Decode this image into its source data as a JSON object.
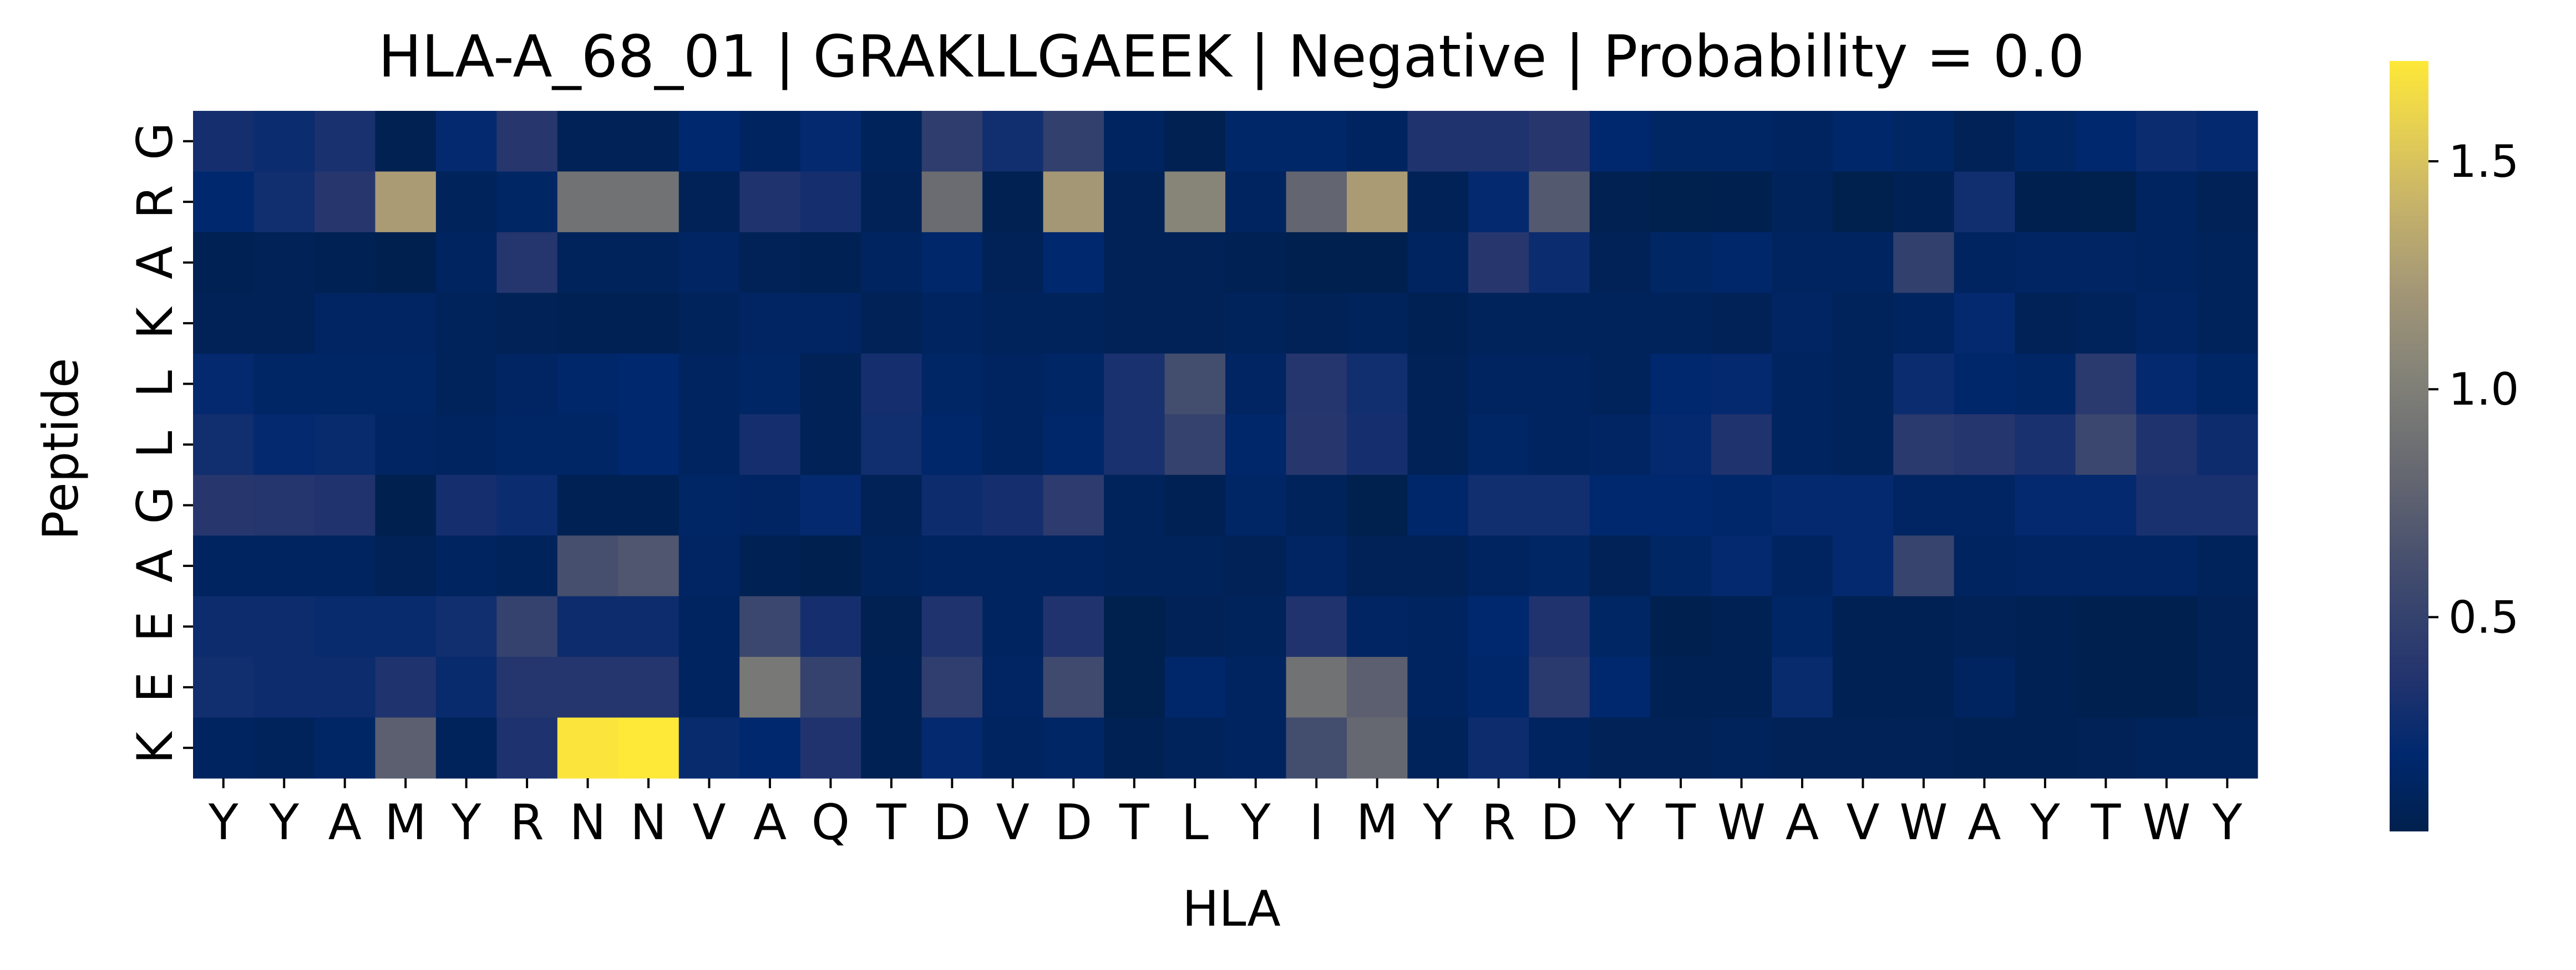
{
  "chart_data": {
    "type": "heatmap",
    "title": "HLA-A_68_01 | GRAKLLGAEEK | Negative | Probability = 0.0",
    "xlabel": "HLA",
    "ylabel": "Peptide",
    "x_ticks": [
      "Y",
      "Y",
      "A",
      "M",
      "Y",
      "R",
      "N",
      "N",
      "V",
      "A",
      "Q",
      "T",
      "D",
      "V",
      "D",
      "T",
      "L",
      "Y",
      "I",
      "M",
      "Y",
      "R",
      "D",
      "Y",
      "T",
      "W",
      "A",
      "V",
      "W",
      "A",
      "Y",
      "T",
      "W",
      "Y"
    ],
    "y_ticks": [
      "G",
      "R",
      "A",
      "K",
      "L",
      "L",
      "G",
      "A",
      "E",
      "E",
      "K"
    ],
    "colormap": "cividis",
    "vmin": 0.03,
    "vmax": 1.72,
    "colorbar_ticks": [
      {
        "value": 0.5,
        "label": "0.5"
      },
      {
        "value": 1.0,
        "label": "1.0"
      },
      {
        "value": 1.5,
        "label": "1.5"
      }
    ],
    "values": [
      [
        0.3,
        0.25,
        0.32,
        0.05,
        0.22,
        0.4,
        0.08,
        0.08,
        0.2,
        0.12,
        0.22,
        0.1,
        0.45,
        0.28,
        0.48,
        0.12,
        0.05,
        0.17,
        0.17,
        0.12,
        0.35,
        0.35,
        0.4,
        0.2,
        0.15,
        0.15,
        0.12,
        0.18,
        0.15,
        0.08,
        0.15,
        0.2,
        0.25,
        0.22
      ],
      [
        0.2,
        0.28,
        0.4,
        1.25,
        0.1,
        0.15,
        0.9,
        0.9,
        0.08,
        0.35,
        0.3,
        0.08,
        0.85,
        0.05,
        1.22,
        0.08,
        1.05,
        0.12,
        0.8,
        1.25,
        0.08,
        0.22,
        0.7,
        0.05,
        0.03,
        0.04,
        0.1,
        0.03,
        0.06,
        0.28,
        0.04,
        0.03,
        0.12,
        0.08
      ],
      [
        0.06,
        0.08,
        0.06,
        0.04,
        0.12,
        0.38,
        0.1,
        0.1,
        0.14,
        0.08,
        0.06,
        0.12,
        0.18,
        0.08,
        0.2,
        0.08,
        0.08,
        0.06,
        0.04,
        0.04,
        0.12,
        0.4,
        0.25,
        0.08,
        0.15,
        0.18,
        0.12,
        0.12,
        0.48,
        0.12,
        0.14,
        0.14,
        0.12,
        0.1
      ],
      [
        0.08,
        0.08,
        0.14,
        0.14,
        0.1,
        0.08,
        0.06,
        0.06,
        0.1,
        0.14,
        0.14,
        0.08,
        0.12,
        0.1,
        0.1,
        0.08,
        0.08,
        0.1,
        0.08,
        0.1,
        0.06,
        0.1,
        0.1,
        0.1,
        0.1,
        0.08,
        0.14,
        0.1,
        0.12,
        0.22,
        0.08,
        0.1,
        0.14,
        0.1
      ],
      [
        0.22,
        0.16,
        0.16,
        0.16,
        0.1,
        0.14,
        0.18,
        0.2,
        0.12,
        0.16,
        0.08,
        0.3,
        0.16,
        0.12,
        0.16,
        0.32,
        0.6,
        0.14,
        0.38,
        0.28,
        0.08,
        0.12,
        0.12,
        0.1,
        0.2,
        0.22,
        0.12,
        0.1,
        0.25,
        0.18,
        0.16,
        0.42,
        0.22,
        0.16
      ],
      [
        0.28,
        0.22,
        0.24,
        0.14,
        0.12,
        0.16,
        0.16,
        0.2,
        0.12,
        0.3,
        0.08,
        0.28,
        0.18,
        0.12,
        0.18,
        0.32,
        0.5,
        0.18,
        0.4,
        0.3,
        0.08,
        0.16,
        0.12,
        0.14,
        0.22,
        0.35,
        0.12,
        0.1,
        0.42,
        0.38,
        0.32,
        0.55,
        0.35,
        0.26
      ],
      [
        0.4,
        0.38,
        0.36,
        0.04,
        0.3,
        0.25,
        0.06,
        0.06,
        0.16,
        0.14,
        0.22,
        0.08,
        0.26,
        0.3,
        0.44,
        0.1,
        0.06,
        0.16,
        0.1,
        0.03,
        0.18,
        0.28,
        0.28,
        0.2,
        0.2,
        0.18,
        0.22,
        0.22,
        0.14,
        0.14,
        0.22,
        0.22,
        0.32,
        0.32
      ],
      [
        0.12,
        0.12,
        0.12,
        0.08,
        0.12,
        0.1,
        0.62,
        0.68,
        0.14,
        0.06,
        0.04,
        0.1,
        0.12,
        0.12,
        0.12,
        0.1,
        0.1,
        0.08,
        0.14,
        0.08,
        0.08,
        0.12,
        0.15,
        0.08,
        0.15,
        0.22,
        0.12,
        0.22,
        0.52,
        0.12,
        0.14,
        0.14,
        0.14,
        0.1
      ],
      [
        0.26,
        0.26,
        0.24,
        0.24,
        0.28,
        0.5,
        0.26,
        0.26,
        0.12,
        0.55,
        0.3,
        0.05,
        0.35,
        0.12,
        0.36,
        0.03,
        0.08,
        0.1,
        0.36,
        0.14,
        0.12,
        0.2,
        0.36,
        0.15,
        0.04,
        0.06,
        0.16,
        0.06,
        0.06,
        0.08,
        0.06,
        0.04,
        0.04,
        0.08
      ],
      [
        0.28,
        0.26,
        0.26,
        0.35,
        0.24,
        0.38,
        0.38,
        0.38,
        0.12,
        0.95,
        0.5,
        0.06,
        0.46,
        0.14,
        0.58,
        0.02,
        0.18,
        0.12,
        0.9,
        0.75,
        0.12,
        0.18,
        0.42,
        0.2,
        0.06,
        0.06,
        0.24,
        0.06,
        0.06,
        0.12,
        0.06,
        0.04,
        0.04,
        0.08
      ],
      [
        0.12,
        0.1,
        0.16,
        0.75,
        0.1,
        0.34,
        1.7,
        1.72,
        0.24,
        0.2,
        0.36,
        0.06,
        0.22,
        0.12,
        0.16,
        0.06,
        0.1,
        0.12,
        0.6,
        0.82,
        0.1,
        0.26,
        0.12,
        0.08,
        0.08,
        0.1,
        0.08,
        0.08,
        0.08,
        0.06,
        0.06,
        0.08,
        0.1,
        0.1
      ]
    ]
  }
}
